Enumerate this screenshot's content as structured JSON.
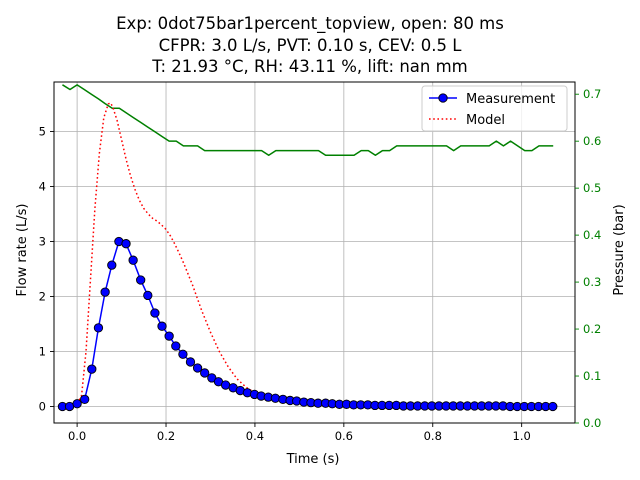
{
  "chart_data": {
    "type": "line",
    "title_lines": [
      "Exp: 0dot75bar1percent_topview, open: 80 ms",
      "CFPR: 3.0 L/s, PVT: 0.10 s, CEV: 0.5 L",
      "T: 21.93 °C, RH: 43.11 %, lift: nan mm"
    ],
    "xlabel": "Time (s)",
    "ylabel_left": "Flow rate (L/s)",
    "ylabel_right": "Pressure (bar)",
    "xlim": [
      -0.052,
      1.12
    ],
    "ylim_left": [
      -0.3,
      5.9
    ],
    "ylim_right": [
      0.0,
      0.726
    ],
    "xticks": [
      0.0,
      0.2,
      0.4,
      0.6,
      0.8,
      1.0
    ],
    "xtick_labels": [
      "0.0",
      "0.2",
      "0.4",
      "0.6",
      "0.8",
      "1.0"
    ],
    "yticks_left": [
      0,
      1,
      2,
      3,
      4,
      5
    ],
    "ytick_labels_left": [
      "0",
      "1",
      "2",
      "3",
      "4",
      "5"
    ],
    "yticks_right": [
      0.0,
      0.1,
      0.2,
      0.3,
      0.4,
      0.5,
      0.6,
      0.7
    ],
    "ytick_labels_right": [
      "0.0",
      "0.1",
      "0.2",
      "0.3",
      "0.4",
      "0.5",
      "0.6",
      "0.7"
    ],
    "grid": true,
    "legend_position": "upper right",
    "series": [
      {
        "name": "Measurement",
        "axis": "left",
        "color": "#0000ff",
        "style": "solid-markers",
        "x": [
          -0.033,
          -0.017,
          0.0,
          0.017,
          0.033,
          0.048,
          0.063,
          0.078,
          0.094,
          0.11,
          0.126,
          0.143,
          0.159,
          0.175,
          0.191,
          0.207,
          0.222,
          0.238,
          0.255,
          0.271,
          0.287,
          0.303,
          0.318,
          0.334,
          0.351,
          0.367,
          0.383,
          0.399,
          0.414,
          0.43,
          0.446,
          0.463,
          0.479,
          0.494,
          0.51,
          0.526,
          0.542,
          0.559,
          0.574,
          0.59,
          0.606,
          0.622,
          0.638,
          0.654,
          0.67,
          0.686,
          0.702,
          0.718,
          0.734,
          0.75,
          0.766,
          0.782,
          0.798,
          0.814,
          0.83,
          0.846,
          0.862,
          0.878,
          0.894,
          0.91,
          0.926,
          0.942,
          0.958,
          0.974,
          0.99,
          1.006,
          1.022,
          1.038,
          1.054,
          1.07
        ],
        "y": [
          0.0,
          0.0,
          0.05,
          0.13,
          0.68,
          1.43,
          2.08,
          2.57,
          3.0,
          2.96,
          2.66,
          2.3,
          2.02,
          1.7,
          1.46,
          1.28,
          1.1,
          0.95,
          0.81,
          0.7,
          0.61,
          0.52,
          0.45,
          0.39,
          0.34,
          0.29,
          0.25,
          0.22,
          0.19,
          0.17,
          0.15,
          0.13,
          0.11,
          0.1,
          0.08,
          0.07,
          0.06,
          0.06,
          0.05,
          0.04,
          0.04,
          0.03,
          0.03,
          0.03,
          0.02,
          0.02,
          0.02,
          0.02,
          0.01,
          0.01,
          0.01,
          0.01,
          0.01,
          0.01,
          0.01,
          0.01,
          0.01,
          0.01,
          0.01,
          0.01,
          0.01,
          0.01,
          0.01,
          0.0,
          0.0,
          0.0,
          0.0,
          0.0,
          0.0,
          0.0
        ]
      },
      {
        "name": "Model",
        "axis": "left",
        "color": "#ff0000",
        "style": "dotted",
        "x": [
          0.0,
          0.01,
          0.02,
          0.03,
          0.04,
          0.05,
          0.06,
          0.07,
          0.075,
          0.08,
          0.09,
          0.1,
          0.11,
          0.12,
          0.13,
          0.14,
          0.15,
          0.16,
          0.17,
          0.18,
          0.19,
          0.2,
          0.21,
          0.22,
          0.23,
          0.24,
          0.25,
          0.26,
          0.28,
          0.3,
          0.32,
          0.34,
          0.36,
          0.38,
          0.4,
          0.42,
          0.44,
          0.46,
          0.48,
          0.5,
          0.55,
          0.6,
          0.65,
          0.7,
          0.75,
          0.8,
          0.85,
          0.9,
          0.95,
          1.0,
          1.05,
          1.07
        ],
        "y": [
          0.05,
          0.2,
          1.0,
          2.3,
          3.6,
          4.6,
          5.25,
          5.5,
          5.52,
          5.45,
          5.2,
          4.85,
          4.5,
          4.2,
          3.95,
          3.75,
          3.6,
          3.5,
          3.42,
          3.37,
          3.3,
          3.22,
          3.1,
          2.95,
          2.78,
          2.6,
          2.4,
          2.2,
          1.75,
          1.35,
          1.0,
          0.72,
          0.5,
          0.35,
          0.25,
          0.18,
          0.13,
          0.1,
          0.08,
          0.06,
          0.04,
          0.03,
          0.02,
          0.01,
          0.01,
          0.0,
          0.0,
          0.0,
          0.0,
          0.0,
          0.0,
          0.0
        ]
      },
      {
        "name": "Pressure",
        "axis": "right",
        "color": "#008000",
        "style": "solid",
        "x": [
          -0.033,
          -0.016,
          0.0,
          0.016,
          0.032,
          0.048,
          0.063,
          0.079,
          0.095,
          0.111,
          0.127,
          0.143,
          0.159,
          0.175,
          0.191,
          0.207,
          0.223,
          0.239,
          0.255,
          0.271,
          0.287,
          0.303,
          0.319,
          0.335,
          0.351,
          0.367,
          0.383,
          0.399,
          0.415,
          0.431,
          0.447,
          0.463,
          0.479,
          0.495,
          0.511,
          0.527,
          0.543,
          0.559,
          0.575,
          0.591,
          0.607,
          0.623,
          0.639,
          0.655,
          0.671,
          0.687,
          0.703,
          0.719,
          0.735,
          0.751,
          0.767,
          0.783,
          0.799,
          0.815,
          0.831,
          0.847,
          0.863,
          0.879,
          0.895,
          0.911,
          0.927,
          0.943,
          0.959,
          0.975,
          0.991,
          1.007,
          1.023,
          1.039,
          1.055,
          1.071
        ],
        "y": [
          0.72,
          0.71,
          0.72,
          0.71,
          0.7,
          0.69,
          0.68,
          0.67,
          0.67,
          0.66,
          0.65,
          0.64,
          0.63,
          0.62,
          0.61,
          0.6,
          0.6,
          0.59,
          0.59,
          0.59,
          0.58,
          0.58,
          0.58,
          0.58,
          0.58,
          0.58,
          0.58,
          0.58,
          0.58,
          0.57,
          0.58,
          0.58,
          0.58,
          0.58,
          0.58,
          0.58,
          0.58,
          0.57,
          0.57,
          0.57,
          0.57,
          0.57,
          0.58,
          0.58,
          0.57,
          0.58,
          0.58,
          0.59,
          0.59,
          0.59,
          0.59,
          0.59,
          0.59,
          0.59,
          0.59,
          0.58,
          0.59,
          0.59,
          0.59,
          0.59,
          0.59,
          0.6,
          0.59,
          0.6,
          0.59,
          0.58,
          0.58,
          0.59,
          0.59,
          0.59
        ]
      }
    ]
  }
}
